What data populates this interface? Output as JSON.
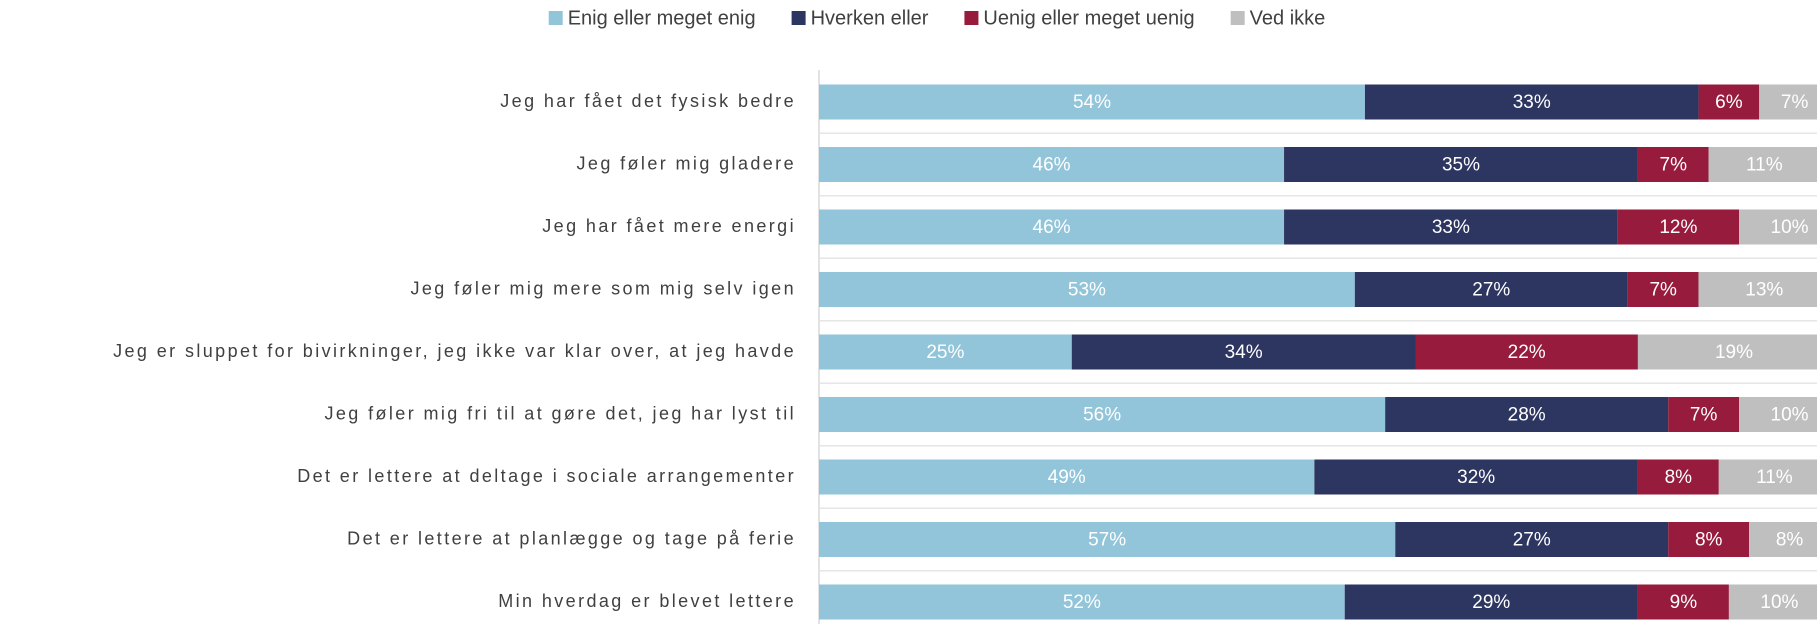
{
  "chart_data": {
    "type": "stacked-bar",
    "orientation": "horizontal",
    "categories": [
      "Jeg har fået det fysisk bedre",
      "Jeg føler mig gladere",
      "Jeg har fået mere energi",
      "Jeg føler mig mere som mig selv igen",
      "Jeg er sluppet for bivirkninger, jeg ikke var klar over, at jeg havde",
      "Jeg føler mig fri til at gøre det, jeg har lyst til",
      "Det er lettere at deltage i sociale arrangementer",
      "Det er lettere at planlægge og tage på ferie",
      "Min hverdag er blevet lettere"
    ],
    "series": [
      {
        "name": "Enig eller meget enig",
        "color": "#92c5d9",
        "values": [
          54,
          46,
          46,
          53,
          25,
          56,
          49,
          57,
          52
        ],
        "value_labels": [
          "54%",
          "46%",
          "46%",
          "53%",
          "25%",
          "56%",
          "49%",
          "57%",
          "52%"
        ]
      },
      {
        "name": "Hverken eller",
        "color": "#2d3561",
        "values": [
          33,
          35,
          33,
          27,
          34,
          28,
          32,
          27,
          29
        ],
        "value_labels": [
          "33%",
          "35%",
          "33%",
          "27%",
          "34%",
          "28%",
          "32%",
          "27%",
          "29%"
        ]
      },
      {
        "name": "Uenig eller meget uenig",
        "color": "#961b3c",
        "values": [
          6,
          7,
          12,
          7,
          22,
          7,
          8,
          8,
          9
        ],
        "value_labels": [
          "6%",
          "7%",
          "12%",
          "7%",
          "22%",
          "7%",
          "8%",
          "8%",
          "9%"
        ]
      },
      {
        "name": "Ved ikke",
        "color": "#bfbfbf",
        "values": [
          7,
          11,
          10,
          13,
          19,
          10,
          11,
          8,
          10
        ],
        "value_labels": [
          "7%",
          "11%",
          "10%",
          "13%",
          "19%",
          "10%",
          "11%",
          "8%",
          "10%"
        ]
      }
    ],
    "xlim": [
      0,
      100
    ],
    "legend": "top"
  }
}
